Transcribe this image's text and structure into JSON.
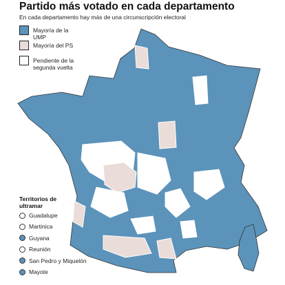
{
  "header": {
    "title": "Partido más votado en cada departamento",
    "subtitle": "En cada departamento hay más de una circunscripción electoral"
  },
  "legend": [
    {
      "label": "Mayoría de la UMP",
      "color": "#5b93ba"
    },
    {
      "label": "Mayoría del PS",
      "color": "#eadcd8"
    },
    {
      "label": "Pendiente de la segunda vuelta",
      "color": "#ffffff"
    }
  ],
  "territories": {
    "title": "Territorios de ultramar",
    "items": [
      {
        "label": "Guadalupe",
        "color": "#ffffff"
      },
      {
        "label": "Martinica",
        "color": "#ffffff"
      },
      {
        "label": "Guyana",
        "color": "#5b93ba"
      },
      {
        "label": "Reunión",
        "color": "#ffffff"
      },
      {
        "label": "San Pedro y Miquelón",
        "color": "#5b93ba"
      },
      {
        "label": "Mayote",
        "color": "#5b93ba"
      }
    ]
  }
}
